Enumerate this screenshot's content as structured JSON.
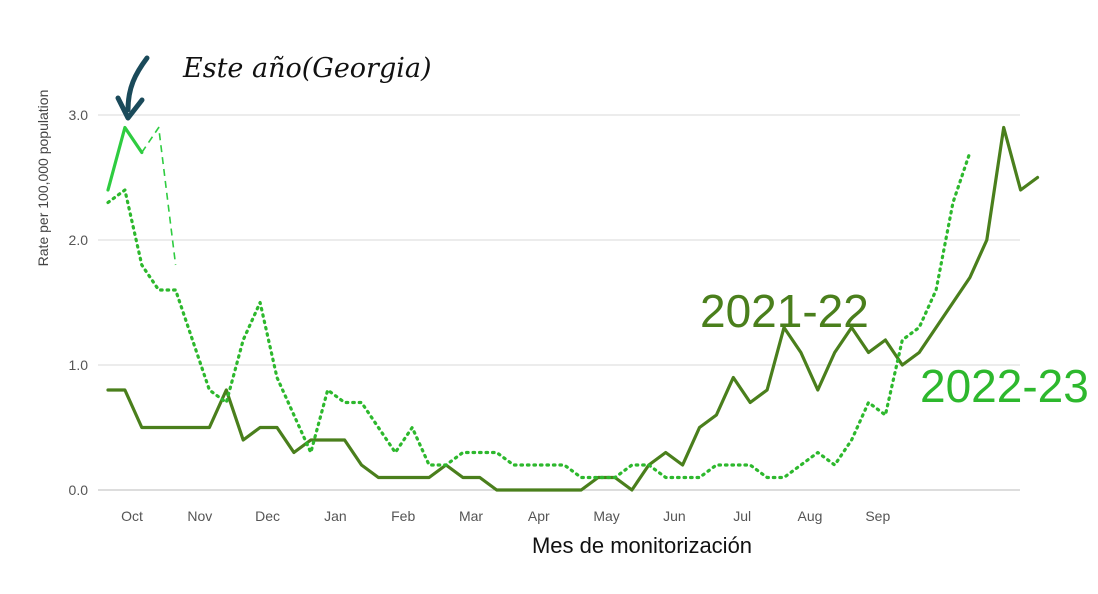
{
  "chart_data": {
    "type": "line",
    "xlabel": "Mes de monitorización",
    "ylabel": "Rate per 100,000 population",
    "ylim": [
      0,
      3.0
    ],
    "yticks": [
      "0.0",
      "1.0",
      "2.0",
      "3.0"
    ],
    "yticks_values": [
      0,
      1,
      2,
      3
    ],
    "months": [
      "Oct",
      "Nov",
      "Dec",
      "Jan",
      "Feb",
      "Mar",
      "Apr",
      "May",
      "Jun",
      "Jul",
      "Aug",
      "Sep"
    ],
    "grid": true,
    "annotation": "Este año(Georgia)",
    "colors": {
      "series_2021_22": "#4a7f1c",
      "series_2022_23": "#2db82d",
      "current_year": "#2ecc40",
      "arrow": "#1a4a5a",
      "grid": "#d9d9d9",
      "axis": "#bbbbbb"
    },
    "series": [
      {
        "name": "2021-22",
        "style": "solid",
        "values": [
          0.8,
          0.8,
          0.5,
          0.5,
          0.5,
          0.5,
          0.5,
          0.8,
          0.4,
          0.5,
          0.5,
          0.3,
          0.4,
          0.4,
          0.4,
          0.2,
          0.1,
          0.1,
          0.1,
          0.1,
          0.2,
          0.1,
          0.1,
          0.0,
          0.0,
          0.0,
          0.0,
          0.0,
          0.0,
          0.1,
          0.1,
          0.0,
          0.2,
          0.3,
          0.2,
          0.5,
          0.6,
          0.9,
          0.7,
          0.8,
          1.3,
          1.1,
          0.8,
          1.1,
          1.3,
          1.1,
          1.2,
          1.0,
          1.1,
          1.3,
          1.5,
          1.7,
          2.0,
          2.9,
          2.4,
          2.5
        ]
      },
      {
        "name": "2022-23",
        "style": "dotted",
        "values": [
          2.3,
          2.4,
          1.8,
          1.6,
          1.6,
          1.2,
          0.8,
          0.7,
          1.2,
          1.5,
          0.9,
          0.6,
          0.3,
          0.8,
          0.7,
          0.7,
          0.5,
          0.3,
          0.5,
          0.2,
          0.2,
          0.3,
          0.3,
          0.3,
          0.2,
          0.2,
          0.2,
          0.2,
          0.1,
          0.1,
          0.1,
          0.2,
          0.2,
          0.1,
          0.1,
          0.1,
          0.2,
          0.2,
          0.2,
          0.1,
          0.1,
          0.2,
          0.3,
          0.2,
          0.4,
          0.7,
          0.6,
          1.2,
          1.3,
          1.6,
          2.3,
          2.7
        ]
      },
      {
        "name": "Este año(Georgia)",
        "style": "solid",
        "values": [
          2.4,
          2.9,
          2.7
        ]
      },
      {
        "name": "Este año(Georgia)",
        "style": "dashed",
        "values": [
          2.7,
          2.9,
          1.8
        ]
      }
    ]
  }
}
